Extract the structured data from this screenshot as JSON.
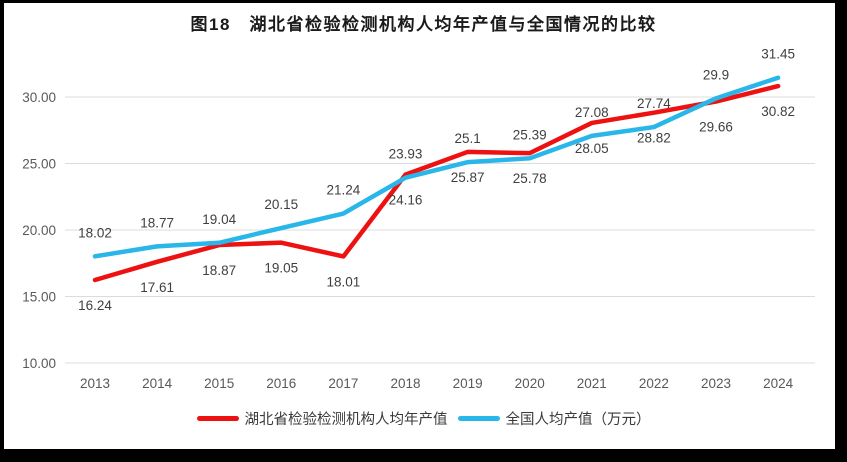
{
  "chart_data": {
    "type": "line",
    "title": "图18　湖北省检验检测机构人均年产值与全国情况的比较",
    "categories": [
      "2013",
      "2014",
      "2015",
      "2016",
      "2017",
      "2018",
      "2019",
      "2020",
      "2021",
      "2022",
      "2023",
      "2024"
    ],
    "series": [
      {
        "name": "湖北省检验检测机构人均年产值",
        "color": "#ee1111",
        "label_position": "below",
        "values": [
          16.24,
          17.61,
          18.87,
          19.05,
          18.01,
          24.16,
          25.87,
          25.78,
          28.05,
          28.82,
          29.66,
          30.82
        ]
      },
      {
        "name": "全国人均产值（万元）",
        "color": "#29b6e9",
        "label_position": "above",
        "values": [
          18.02,
          18.77,
          19.04,
          20.15,
          21.24,
          23.93,
          25.1,
          25.39,
          27.08,
          27.74,
          29.9,
          31.45
        ]
      }
    ],
    "y_axis": {
      "ticks": [
        "10.00",
        "15.00",
        "20.00",
        "25.00",
        "30.00"
      ],
      "range": [
        10,
        33
      ]
    },
    "grid": true,
    "legend_position": "bottom",
    "colors": {
      "gridline": "#dcdcdc",
      "axis_text": "#595959",
      "data_label": "#3f3f3f",
      "frame": "#000000",
      "background": "#ffffff"
    }
  }
}
